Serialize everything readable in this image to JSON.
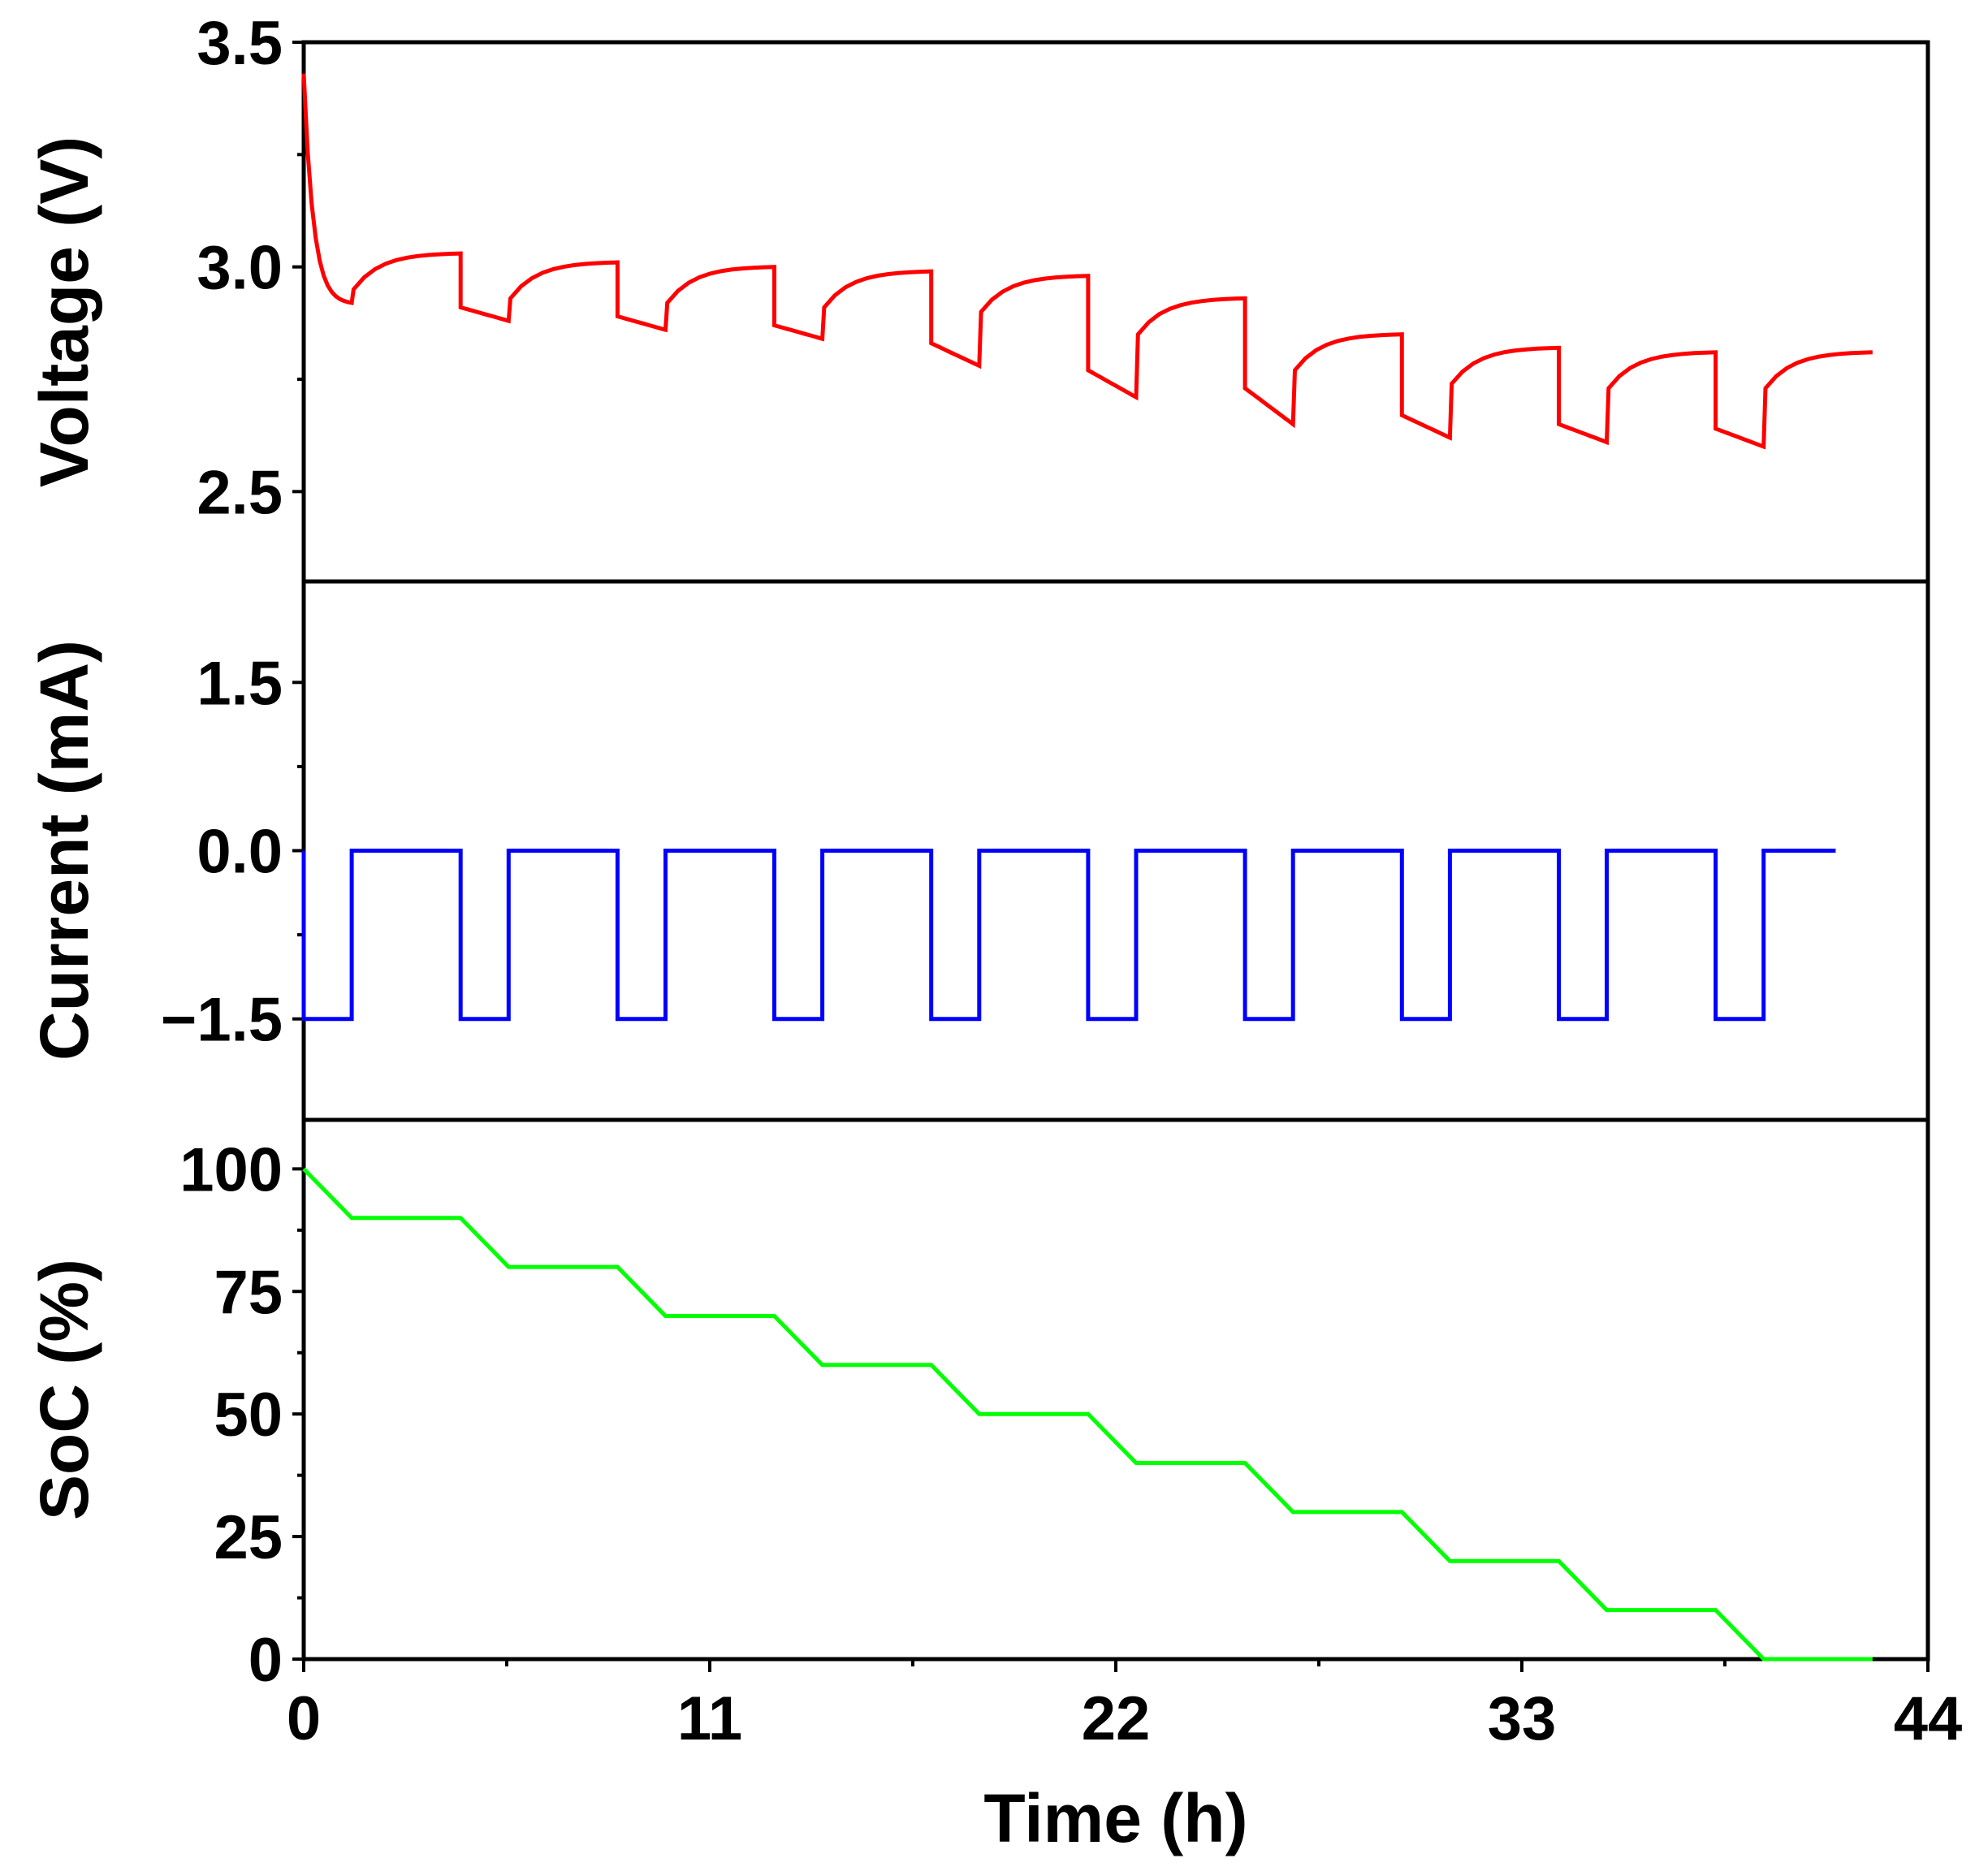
{
  "chart_data": {
    "type": "line",
    "shared_x": {
      "label": "Time (h)",
      "range": [
        0,
        44
      ],
      "ticks": [
        0,
        11,
        22,
        33,
        44
      ],
      "tick_labels": [
        "0",
        "11",
        "22",
        "33",
        "44"
      ]
    },
    "cycle": {
      "period_h": 4.25,
      "pulse_h": 1.3,
      "count": 10,
      "end_h": 42.5
    },
    "panels": [
      {
        "id": "voltage",
        "ylabel": "Voltage (V)",
        "ylim": [
          2.3,
          3.5
        ],
        "yticks": [
          2.5,
          3.0,
          3.5
        ],
        "ytick_labels": [
          "2.5",
          "3.0",
          "3.5"
        ],
        "color": "#ff0000",
        "series": {
          "name": "Voltage",
          "initial_v": 3.43,
          "pulse_end_v": [
            2.92,
            2.88,
            2.86,
            2.84,
            2.78,
            2.71,
            2.65,
            2.62,
            2.61,
            2.6
          ],
          "pulse_drop_v": [
            0.0,
            0.12,
            0.12,
            0.13,
            0.16,
            0.21,
            0.2,
            0.18,
            0.17,
            0.17
          ],
          "rest_end_v": [
            3.03,
            3.01,
            3.0,
            2.99,
            2.98,
            2.93,
            2.85,
            2.82,
            2.81,
            2.81
          ]
        }
      },
      {
        "id": "current",
        "ylabel": "Current (mA)",
        "ylim": [
          -2.4,
          2.4
        ],
        "yticks": [
          -1.5,
          0.0,
          1.5
        ],
        "ytick_labels": [
          "−1.5",
          "0.0",
          "1.5"
        ],
        "color": "#0000ff",
        "series": {
          "name": "Current",
          "pulse_value": -1.5,
          "rest_value": 0.0
        }
      },
      {
        "id": "soc",
        "ylabel": "SoC (%)",
        "ylim": [
          0,
          110
        ],
        "yticks": [
          0,
          25,
          50,
          75,
          100
        ],
        "ytick_labels": [
          "0",
          "25",
          "50",
          "75",
          "100"
        ],
        "color": "#00ff00",
        "series": {
          "name": "SoC",
          "steps": [
            100,
            90,
            80,
            70,
            60,
            50,
            40,
            30,
            20,
            10,
            0
          ]
        }
      }
    ]
  }
}
